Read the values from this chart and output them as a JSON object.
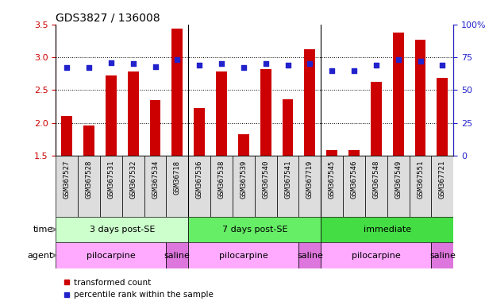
{
  "title": "GDS3827 / 136008",
  "samples": [
    "GSM367527",
    "GSM367528",
    "GSM367531",
    "GSM367532",
    "GSM367534",
    "GSM36718",
    "GSM367536",
    "GSM367538",
    "GSM367539",
    "GSM367540",
    "GSM367541",
    "GSM367719",
    "GSM367545",
    "GSM367546",
    "GSM367548",
    "GSM367549",
    "GSM367551",
    "GSM367721"
  ],
  "transformed_count": [
    2.1,
    1.96,
    2.72,
    2.78,
    2.35,
    3.43,
    2.22,
    2.78,
    1.83,
    2.82,
    2.36,
    3.12,
    1.58,
    1.58,
    2.62,
    3.38,
    3.27,
    2.68
  ],
  "percentile_rank": [
    67,
    67,
    71,
    70,
    68,
    73,
    69,
    70,
    67,
    70,
    69,
    70,
    65,
    65,
    69,
    73,
    72,
    69
  ],
  "ylim_left": [
    1.5,
    3.5
  ],
  "ylim_right": [
    0,
    100
  ],
  "yticks_left": [
    1.5,
    2.0,
    2.5,
    3.0,
    3.5
  ],
  "yticks_right": [
    0,
    25,
    50,
    75,
    100
  ],
  "bar_color": "#cc0000",
  "dot_color": "#2222cc",
  "bar_width": 0.5,
  "group_sep": [
    5.5,
    11.5
  ],
  "time_groups": [
    {
      "label": "3 days post-SE",
      "start": 0,
      "end": 5,
      "color": "#ccffcc"
    },
    {
      "label": "7 days post-SE",
      "start": 6,
      "end": 11,
      "color": "#66ee66"
    },
    {
      "label": "immediate",
      "start": 12,
      "end": 17,
      "color": "#44dd44"
    }
  ],
  "agent_groups": [
    {
      "label": "pilocarpine",
      "start": 0,
      "end": 4,
      "color": "#ffaaff"
    },
    {
      "label": "saline",
      "start": 5,
      "end": 5,
      "color": "#dd77dd"
    },
    {
      "label": "pilocarpine",
      "start": 6,
      "end": 10,
      "color": "#ffaaff"
    },
    {
      "label": "saline",
      "start": 11,
      "end": 11,
      "color": "#dd77dd"
    },
    {
      "label": "pilocarpine",
      "start": 12,
      "end": 16,
      "color": "#ffaaff"
    },
    {
      "label": "saline",
      "start": 17,
      "end": 17,
      "color": "#dd77dd"
    }
  ],
  "legend_items": [
    {
      "label": "transformed count",
      "color": "#cc0000"
    },
    {
      "label": "percentile rank within the sample",
      "color": "#2222cc"
    }
  ],
  "label_row_color": "#dddddd",
  "tick_label_fontsize": 6.5,
  "row_label_fontsize": 8,
  "group_label_fontsize": 8
}
